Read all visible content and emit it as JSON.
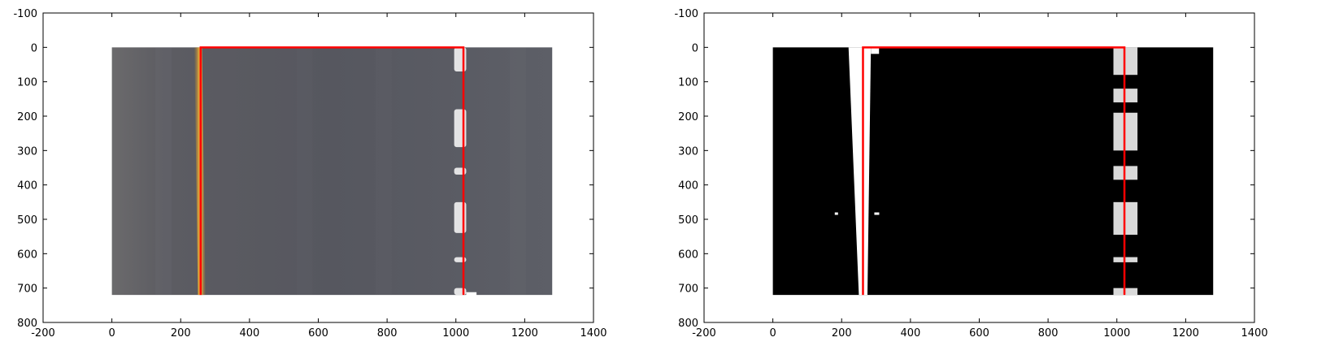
{
  "chart_data": [
    {
      "type": "image",
      "title": "",
      "xlabel": "",
      "ylabel": "",
      "xlim": [
        -200,
        1400
      ],
      "ylim": [
        800,
        -100
      ],
      "y_inverted": true,
      "xticks": [
        -200,
        0,
        200,
        400,
        600,
        800,
        1000,
        1200,
        1400
      ],
      "yticks": [
        -100,
        0,
        100,
        200,
        300,
        400,
        500,
        600,
        700,
        800
      ],
      "image_extent": [
        0,
        1280,
        720,
        0
      ],
      "image_content": "warped color road image, grey asphalt, yellow left lane line, white dashed right lane markings",
      "overlay": {
        "color": "#ff0000",
        "points": [
          [
            258,
            720
          ],
          [
            258,
            0
          ],
          [
            1022,
            0
          ],
          [
            1022,
            720
          ]
        ]
      },
      "background_colors": {
        "road": "#55565d",
        "left_line": "#d8a23a",
        "right_marks": "#f2f2f2"
      }
    },
    {
      "type": "image",
      "title": "",
      "xlabel": "",
      "ylabel": "",
      "xlim": [
        -200,
        1400
      ],
      "ylim": [
        800,
        -100
      ],
      "y_inverted": true,
      "xticks": [
        -200,
        0,
        200,
        400,
        600,
        800,
        1000,
        1200,
        1400
      ],
      "yticks": [
        -100,
        0,
        100,
        200,
        300,
        400,
        500,
        600,
        700,
        800
      ],
      "image_extent": [
        0,
        1280,
        720,
        0
      ],
      "image_content": "binary thresholded warped road image, black background with white lane line pixels",
      "overlay": {
        "color": "#ff0000",
        "points": [
          [
            262,
            720
          ],
          [
            262,
            0
          ],
          [
            1022,
            0
          ],
          [
            1022,
            720
          ]
        ]
      },
      "background_colors": {
        "road": "#000000",
        "left_line": "#ffffff",
        "right_marks": "#ffffff"
      }
    }
  ]
}
